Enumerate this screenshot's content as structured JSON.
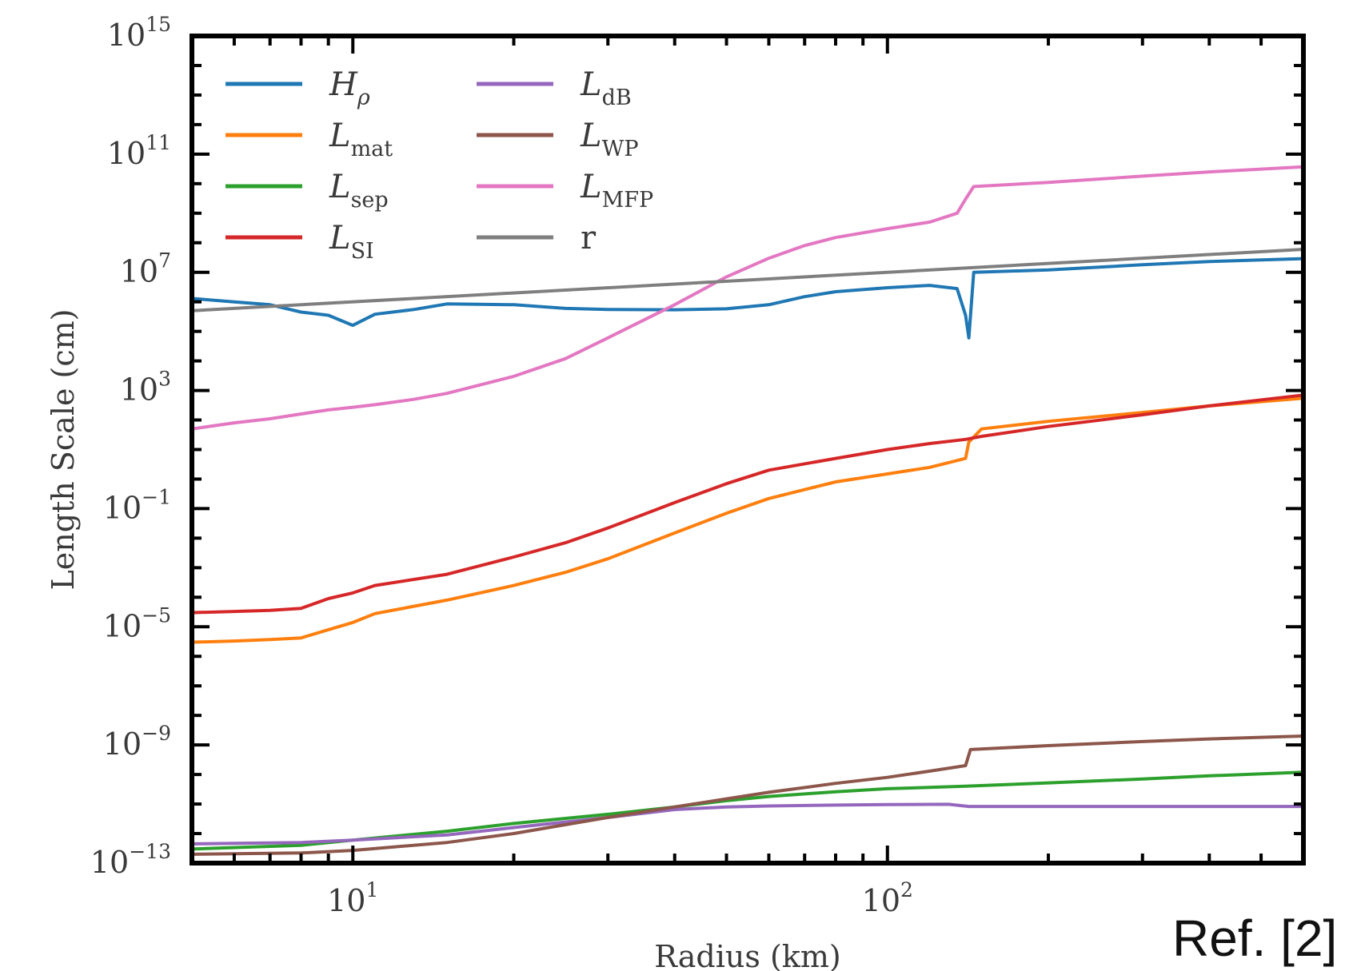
{
  "chart_data": {
    "type": "line",
    "xlabel": "Radius (km)",
    "ylabel": "Length Scale (cm)",
    "xscale": "log",
    "yscale": "log",
    "xlim": [
      5,
      600
    ],
    "ylim": [
      1e-13,
      1000000000000000.0
    ],
    "grid": false,
    "legend_position": "top-left",
    "x_tick_labels": [
      {
        "value": 10,
        "base": "10",
        "exp": "1"
      },
      {
        "value": 100,
        "base": "10",
        "exp": "2"
      }
    ],
    "y_tick_labels": [
      {
        "value": 1000000000000000.0,
        "base": "10",
        "exp": "15"
      },
      {
        "value": 100000000000.0,
        "base": "10",
        "exp": "11"
      },
      {
        "value": 10000000.0,
        "base": "10",
        "exp": "7"
      },
      {
        "value": 1000.0,
        "base": "10",
        "exp": "3"
      },
      {
        "value": 0.1,
        "base": "10",
        "exp": "−1"
      },
      {
        "value": 1e-05,
        "base": "10",
        "exp": "−5"
      },
      {
        "value": 1e-09,
        "base": "10",
        "exp": "−9"
      },
      {
        "value": 1e-13,
        "base": "10",
        "exp": "−13"
      }
    ],
    "series": [
      {
        "name": "H",
        "sub": "ρ",
        "sub_italic": true,
        "color": "#1f77b4",
        "points": [
          [
            5,
            1300000.0
          ],
          [
            6,
            1000000.0
          ],
          [
            7,
            800000.0
          ],
          [
            8,
            450000.0
          ],
          [
            9,
            350000.0
          ],
          [
            10,
            160000.0
          ],
          [
            11,
            380000.0
          ],
          [
            13,
            550000.0
          ],
          [
            15,
            850000.0
          ],
          [
            20,
            800000.0
          ],
          [
            25,
            600000.0
          ],
          [
            30,
            550000.0
          ],
          [
            40,
            540000.0
          ],
          [
            50,
            580000.0
          ],
          [
            60,
            800000.0
          ],
          [
            70,
            1500000.0
          ],
          [
            80,
            2200000.0
          ],
          [
            100,
            3000000.0
          ],
          [
            120,
            3600000.0
          ],
          [
            135,
            2800000.0
          ],
          [
            140,
            350000.0
          ],
          [
            142,
            60000.0
          ],
          [
            145,
            10000000.0
          ],
          [
            200,
            12000000.0
          ],
          [
            300,
            18000000.0
          ],
          [
            400,
            23000000.0
          ],
          [
            600,
            29000000.0
          ]
        ]
      },
      {
        "name": "L",
        "sub": "mat",
        "color": "#ff7f0e",
        "points": [
          [
            5,
            3e-06
          ],
          [
            6,
            3.3e-06
          ],
          [
            7,
            3.7e-06
          ],
          [
            8,
            4.2e-06
          ],
          [
            9,
            8e-06
          ],
          [
            10,
            1.4e-05
          ],
          [
            11,
            2.8e-05
          ],
          [
            15,
            8e-05
          ],
          [
            20,
            0.00025
          ],
          [
            25,
            0.0007
          ],
          [
            30,
            0.002
          ],
          [
            40,
            0.015
          ],
          [
            50,
            0.07
          ],
          [
            60,
            0.22
          ],
          [
            80,
            0.8
          ],
          [
            100,
            1.5
          ],
          [
            120,
            2.5
          ],
          [
            140,
            5
          ],
          [
            142,
            18
          ],
          [
            150,
            50
          ],
          [
            200,
            90
          ],
          [
            300,
            180
          ],
          [
            400,
            300
          ],
          [
            600,
            550
          ]
        ]
      },
      {
        "name": "L",
        "sub": "sep",
        "color": "#2ca02c",
        "points": [
          [
            5,
            3e-13
          ],
          [
            8,
            4e-13
          ],
          [
            10,
            6e-13
          ],
          [
            15,
            1.2e-12
          ],
          [
            20,
            2.2e-12
          ],
          [
            30,
            4.5e-12
          ],
          [
            40,
            8e-12
          ],
          [
            50,
            1.3e-11
          ],
          [
            60,
            1.8e-11
          ],
          [
            80,
            2.6e-11
          ],
          [
            100,
            3.3e-11
          ],
          [
            140,
            4e-11
          ],
          [
            200,
            5.2e-11
          ],
          [
            300,
            7e-11
          ],
          [
            400,
            9e-11
          ],
          [
            600,
            1.2e-10
          ]
        ]
      },
      {
        "name": "L",
        "sub": "SI",
        "color": "#d62728",
        "points": [
          [
            5,
            3e-05
          ],
          [
            6,
            3.3e-05
          ],
          [
            7,
            3.6e-05
          ],
          [
            8,
            4.2e-05
          ],
          [
            9,
            9e-05
          ],
          [
            10,
            0.00014
          ],
          [
            11,
            0.00025
          ],
          [
            15,
            0.0006
          ],
          [
            20,
            0.0023
          ],
          [
            25,
            0.007
          ],
          [
            30,
            0.022
          ],
          [
            40,
            0.16
          ],
          [
            50,
            0.7
          ],
          [
            60,
            2.0
          ],
          [
            80,
            5
          ],
          [
            100,
            10
          ],
          [
            120,
            16
          ],
          [
            140,
            22
          ],
          [
            150,
            28
          ],
          [
            200,
            60
          ],
          [
            300,
            150
          ],
          [
            400,
            300
          ],
          [
            600,
            700
          ]
        ]
      },
      {
        "name": "L",
        "sub": "dB",
        "color": "#9467bd",
        "points": [
          [
            5,
            4.5e-13
          ],
          [
            8,
            5e-13
          ],
          [
            10,
            6e-13
          ],
          [
            15,
            9e-13
          ],
          [
            20,
            1.6e-12
          ],
          [
            30,
            3.5e-12
          ],
          [
            40,
            6.5e-12
          ],
          [
            50,
            8e-12
          ],
          [
            60,
            8.6e-12
          ],
          [
            80,
            9.2e-12
          ],
          [
            100,
            9.6e-12
          ],
          [
            130,
            9.8e-12
          ],
          [
            142,
            8.3e-12
          ],
          [
            200,
            8.3e-12
          ],
          [
            300,
            8.3e-12
          ],
          [
            600,
            8.3e-12
          ]
        ]
      },
      {
        "name": "L",
        "sub": "WP",
        "color": "#8c564b",
        "points": [
          [
            5,
            2e-13
          ],
          [
            8,
            2.2e-13
          ],
          [
            10,
            2.7e-13
          ],
          [
            15,
            5e-13
          ],
          [
            20,
            1e-12
          ],
          [
            25,
            2e-12
          ],
          [
            30,
            3.5e-12
          ],
          [
            40,
            8e-12
          ],
          [
            50,
            1.5e-11
          ],
          [
            60,
            2.5e-11
          ],
          [
            80,
            5e-11
          ],
          [
            100,
            8e-11
          ],
          [
            120,
            1.3e-10
          ],
          [
            140,
            2e-10
          ],
          [
            143,
            7e-10
          ],
          [
            200,
            9.5e-10
          ],
          [
            300,
            1.3e-09
          ],
          [
            400,
            1.6e-09
          ],
          [
            600,
            2e-09
          ]
        ]
      },
      {
        "name": "L",
        "sub": "MFP",
        "color": "#e377c2",
        "points": [
          [
            5,
            50
          ],
          [
            6,
            80
          ],
          [
            7,
            110
          ],
          [
            8,
            160
          ],
          [
            9,
            220
          ],
          [
            10,
            270
          ],
          [
            11,
            330
          ],
          [
            13,
            500
          ],
          [
            15,
            800
          ],
          [
            20,
            3000
          ],
          [
            25,
            12000
          ],
          [
            30,
            60000.0
          ],
          [
            40,
            800000.0
          ],
          [
            50,
            7000000.0
          ],
          [
            60,
            30000000.0
          ],
          [
            70,
            80000000.0
          ],
          [
            80,
            150000000.0
          ],
          [
            100,
            300000000.0
          ],
          [
            120,
            500000000.0
          ],
          [
            135,
            1000000000.0
          ],
          [
            140,
            3000000000.0
          ],
          [
            145,
            8000000000.0
          ],
          [
            200,
            11000000000.0
          ],
          [
            300,
            18000000000.0
          ],
          [
            400,
            25000000000.0
          ],
          [
            600,
            37000000000.0
          ]
        ]
      },
      {
        "name": "r",
        "color": "#7f7f7f",
        "points": [
          [
            5,
            500000.0
          ],
          [
            600,
            60000000.0
          ]
        ]
      }
    ]
  },
  "ref_label": "Ref. [2]"
}
